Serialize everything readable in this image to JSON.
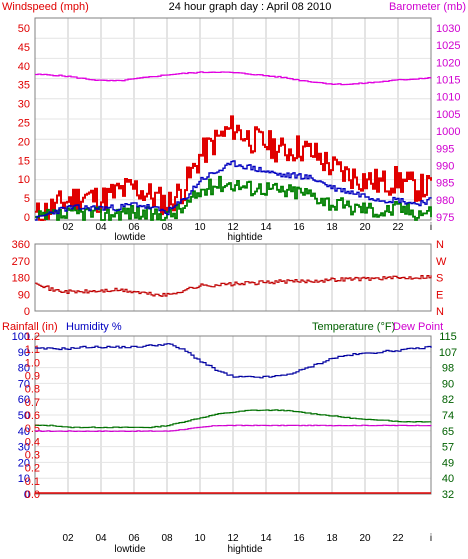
{
  "title": "24 hour graph day : April 08 2010",
  "colors": {
    "wind": "#e00000",
    "wind_avg": "#0000c0",
    "wind_low": "#008000",
    "barometer": "#e000e0",
    "direction": "#c00000",
    "humidity": "#0000a0",
    "rain": "#e00000",
    "temperature": "#007000",
    "dewpoint": "#d000d0",
    "grid": "#c8c8c8",
    "frame": "#808080",
    "label_red": "#e00000",
    "label_magenta": "#d000d0",
    "label_blue": "#0000c0",
    "label_green": "#006000"
  },
  "panels": {
    "wind": {
      "left_label": "Windspeed (mph)",
      "right_label": "Barometer (mb)",
      "left_ticks": [
        "50",
        "45",
        "40",
        "35",
        "30",
        "25",
        "20",
        "15",
        "10",
        "5",
        "0"
      ],
      "right_ticks": [
        "1030",
        "1025",
        "1020",
        "1015",
        "1010",
        "1005",
        "1000",
        "995",
        "990",
        "985",
        "980",
        "975"
      ]
    },
    "direction": {
      "left_ticks": [
        "360",
        "270",
        "180",
        "90",
        "0"
      ],
      "right_ticks": [
        "N",
        "W",
        "S",
        "E",
        "N"
      ]
    },
    "bottom": {
      "rain_label": "Rainfall (in)",
      "humidity_label": "Humidity %",
      "temp_label": "Temperature (°F)",
      "dew_label": "Dew Point",
      "humidity_ticks": [
        "100",
        "90",
        "80",
        "70",
        "60",
        "50",
        "40",
        "30",
        "20",
        "10",
        "0"
      ],
      "rain_ticks": [
        "1.2",
        "1.1",
        "1.0",
        "0.9",
        "0.8",
        "0.7",
        "0.6",
        "0.5",
        "0.4",
        "0.3",
        "0.2",
        "0.1",
        "0.0"
      ],
      "temp_ticks": [
        "115",
        "107",
        "98",
        "90",
        "82",
        "74",
        "65",
        "57",
        "49",
        "40",
        "32"
      ]
    }
  },
  "x_hour_labels": [
    "02",
    "04",
    "06",
    "08",
    "10",
    "12",
    "14",
    "16",
    "18",
    "20",
    "22",
    "i"
  ],
  "tide_top": {
    "low": "lowtide",
    "high": "hightide"
  },
  "tide_bottom": {
    "low": "lowtide",
    "high": "hightide"
  },
  "chart_data": [
    {
      "type": "line",
      "title": "24 hour graph day : April 08 2010",
      "ylabel": "Windspeed (mph)",
      "ylim": [
        0,
        50
      ],
      "y2label": "Barometer (mb)",
      "y2lim": [
        975,
        1030
      ],
      "xlim": [
        0,
        24
      ],
      "x": [
        0,
        1,
        2,
        3,
        4,
        5,
        6,
        7,
        8,
        9,
        10,
        11,
        12,
        13,
        14,
        15,
        16,
        17,
        18,
        19,
        20,
        21,
        22,
        23,
        24
      ],
      "series": [
        {
          "key": "gust",
          "values": [
            1,
            3,
            5,
            6,
            5,
            7,
            8,
            6,
            4,
            8,
            16,
            20,
            23,
            20,
            19,
            17,
            18,
            16,
            13,
            11,
            10,
            9,
            10,
            8,
            8
          ]
        },
        {
          "key": "avg",
          "values": [
            0,
            2,
            3,
            3,
            3,
            3,
            4,
            3,
            2,
            5,
            10,
            12,
            14,
            13,
            12,
            11,
            11,
            10,
            8,
            7,
            6,
            5,
            5,
            4,
            5
          ]
        },
        {
          "key": "low",
          "values": [
            0,
            1,
            1,
            2,
            1,
            2,
            2,
            1,
            1,
            3,
            7,
            9,
            9,
            8,
            8,
            7,
            7,
            6,
            4,
            3,
            3,
            2,
            3,
            2,
            2
          ]
        },
        {
          "key": "barometer",
          "axis": "y2",
          "values": [
            1016.5,
            1016.3,
            1015.9,
            1015.2,
            1014.7,
            1014.6,
            1015.2,
            1015.8,
            1016.4,
            1016.8,
            1017.1,
            1017.2,
            1017.0,
            1016.6,
            1016.1,
            1015.6,
            1014.8,
            1014.2,
            1013.7,
            1013.6,
            1014.0,
            1014.4,
            1014.9,
            1015.2,
            1015.6
          ]
        }
      ]
    },
    {
      "type": "line",
      "ylim": [
        0,
        360
      ],
      "xlim": [
        0,
        24
      ],
      "x": [
        0,
        1,
        2,
        3,
        4,
        5,
        6,
        7,
        8,
        9,
        10,
        11,
        12,
        13,
        14,
        15,
        16,
        17,
        18,
        19,
        20,
        21,
        22,
        23,
        24
      ],
      "series": [
        {
          "key": "direction",
          "values": [
            160,
            110,
            100,
            100,
            105,
            110,
            100,
            85,
            80,
            110,
            135,
            140,
            145,
            150,
            155,
            160,
            160,
            165,
            170,
            175,
            175,
            180,
            180,
            185,
            190
          ]
        }
      ]
    },
    {
      "type": "line",
      "ylabel": "Humidity %",
      "ylim": [
        0,
        100
      ],
      "y2label": "Temperature (°F)",
      "y2lim": [
        32,
        115
      ],
      "y3label": "Rainfall (in)",
      "y3lim": [
        0,
        1.2
      ],
      "xlim": [
        0,
        24
      ],
      "x": [
        0,
        1,
        2,
        3,
        4,
        5,
        6,
        7,
        8,
        9,
        10,
        11,
        12,
        13,
        14,
        15,
        16,
        17,
        18,
        19,
        20,
        21,
        22,
        23,
        24
      ],
      "series": [
        {
          "key": "humidity",
          "values": [
            92,
            92,
            92,
            93,
            93,
            93,
            93,
            94,
            95,
            91,
            84,
            78,
            74,
            74,
            74,
            75,
            78,
            82,
            86,
            88,
            89,
            90,
            91,
            92,
            93
          ]
        },
        {
          "key": "temperature",
          "axis": "y2",
          "values": [
            68,
            68,
            67,
            67,
            67,
            67,
            67,
            67,
            68,
            70,
            72,
            74,
            75,
            76,
            76,
            76,
            75,
            74,
            73,
            72,
            71,
            71,
            70,
            70,
            70
          ]
        },
        {
          "key": "dewpoint",
          "axis": "y2",
          "values": [
            65,
            65,
            65,
            65,
            65,
            65,
            65,
            65,
            65,
            66,
            67,
            68,
            68,
            68,
            68,
            68,
            68,
            68,
            68,
            68,
            68,
            68,
            68,
            68,
            68
          ]
        },
        {
          "key": "rain",
          "axis": "y3",
          "values": [
            0,
            0,
            0,
            0,
            0,
            0,
            0,
            0,
            0,
            0,
            0,
            0,
            0,
            0,
            0,
            0,
            0,
            0,
            0,
            0,
            0,
            0,
            0,
            0,
            0
          ]
        }
      ]
    }
  ]
}
